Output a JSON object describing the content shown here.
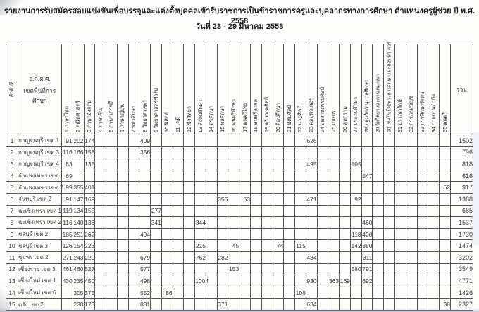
{
  "title": "รายงานการรับสมัครสอบแข่งขันเพื่อบรรจุและแต่งตั้งบุคคลเข้ารับราชการเป็นข้าราชการครูและบุคลากรทางการศึกษา ตำแหน่งครูผู้ช่วย ปี พ.ศ. 2558",
  "subtitle": "วันที่ 23 - 29 มีนาคม 2558",
  "table": {
    "no_header": "ลำดับที่",
    "area_header_line1": "อ.ก.ค.ศ.",
    "area_header_line2": "เขตพื้นที่การศึกษา",
    "total_header": "รวม",
    "subject_columns": [
      "1 ภาษาไทย",
      "2 คณิตศาสตร์",
      "3 ภาษาอังกฤษ",
      "4 ภาษาจีน",
      "5 ภาษาเกาหลี",
      "6 ภาษาญี่ปุ่น",
      "7 พม่าศึกษา",
      "8 วิทยาศาสตร์",
      "9 วิทยาศาสตร์ทั่วไป",
      "10 ฟิสิกส์",
      "11 เคมี",
      "12 ชีววิทยา",
      "13 สังคมศึกษา",
      "14 สุขศึกษา",
      "15 พลศึกษา",
      "16 ดนตรีศึกษา",
      "17 ดนตรีไทย",
      "18 ดนตรีสากล",
      "19 ดุริยางคศิลป์",
      "20 ศิลปศึกษา",
      "21 ทัศนศิลป์",
      "22 นาฏศิลป์",
      "23 คอมพิวเตอร์",
      "24 อุตสาหกรรมศิลป์",
      "25 เกษตร",
      "26 คหกรรม",
      "27 ประถมศึกษา",
      "28 ปฐมวัย/อนุบาลศึกษา",
      "29 จิตวิทยาและการแนะแนว",
      "30 เทคโนโลยีทางการศึกษาและคอมพิวเตอร์",
      "31 บรรณารักษ์",
      "32 การเงิน/บัญชี",
      "33 การศึกษาพิเศษ",
      "34 กายภาพบำบัด",
      "35 ดนตรี"
    ],
    "rows": [
      {
        "no": "1",
        "area": "กาญจนบุรี เขต 1",
        "values": {
          "1": 91,
          "2": 202,
          "3": 174,
          "8": 409,
          "23": 626
        },
        "total": 1502
      },
      {
        "no": "2",
        "area": "กาญจนบุรี เขต 3",
        "values": {
          "1": 116,
          "2": 166,
          "3": 158,
          "8": 356
        },
        "total": 796
      },
      {
        "no": "3",
        "area": "กาญจนบุรี เขต 4",
        "values": {
          "1": 83,
          "3": 135,
          "23": 495,
          "27": 105
        },
        "total": 818
      },
      {
        "no": "4",
        "area": "กำแพงเพชร เขต 1",
        "values": {
          "1": 69,
          "28": 547
        },
        "total": 616
      },
      {
        "no": "5",
        "area": "กำแพงเพชร เขต 2",
        "values": {
          "1": 99,
          "2": 355,
          "3": 401,
          "35": 62
        },
        "total": 917
      },
      {
        "no": "6",
        "area": "จันทบุรี เขต 2",
        "values": {
          "1": 91,
          "2": 147,
          "3": 169,
          "15": 355,
          "17": 63,
          "23": 471,
          "27": 92
        },
        "total": 1388
      },
      {
        "no": "7",
        "area": "ฉะเชิงเทรา เขต 1",
        "values": {
          "1": 119,
          "2": 134,
          "3": 155,
          "9": 277
        },
        "total": 685
      },
      {
        "no": "8",
        "area": "ฉะเชิงเทรา เขต 2",
        "values": {
          "1": 116,
          "2": 140,
          "3": 136,
          "9": 341,
          "13": 344,
          "28": 460
        },
        "total": 1537
      },
      {
        "no": "9",
        "area": "ชลบุรี เขต 2",
        "values": {
          "1": 185,
          "2": 251,
          "3": 262,
          "8": 494,
          "27": 118,
          "28": 420
        },
        "total": 1730
      },
      {
        "no": "10",
        "area": "ชลบุรี เขต 3",
        "values": {
          "1": 126,
          "2": 154,
          "3": 223,
          "13": 215,
          "16": 45,
          "20": 74,
          "22": 115,
          "27": 142,
          "28": 380
        },
        "total": 1474
      },
      {
        "no": "11",
        "area": "ชุมพร เขต 2",
        "values": {
          "1": 271,
          "2": 243,
          "3": 220,
          "8": 679,
          "13": 762,
          "15": 282,
          "23": 434,
          "28": 311
        },
        "total": 3202
      },
      {
        "no": "12",
        "area": "เชียงราย เขต 3",
        "values": {
          "1": 461,
          "2": 460,
          "3": 527,
          "8": 577,
          "16": 153,
          "27": 580,
          "28": 791
        },
        "total": 3549
      },
      {
        "no": "13",
        "area": "เชียงใหม่ เขต 1",
        "values": {
          "1": 430,
          "2": 235,
          "3": 450,
          "8": 498,
          "13": 1004,
          "23": 930,
          "25": 363,
          "26": 169,
          "28": 692
        },
        "total": 4771
      },
      {
        "no": "14",
        "area": "เชียงใหม่ เขต 6",
        "values": {
          "2": 305,
          "3": 375,
          "8": 552,
          "10": 86,
          "22": 108
        },
        "total": 1426
      },
      {
        "no": "15",
        "area": "ตรัง เขต 2",
        "values": {
          "2": 230,
          "3": 173,
          "8": 881,
          "15": 371,
          "23": 634,
          "35": 38
        },
        "total": 2327
      }
    ]
  }
}
